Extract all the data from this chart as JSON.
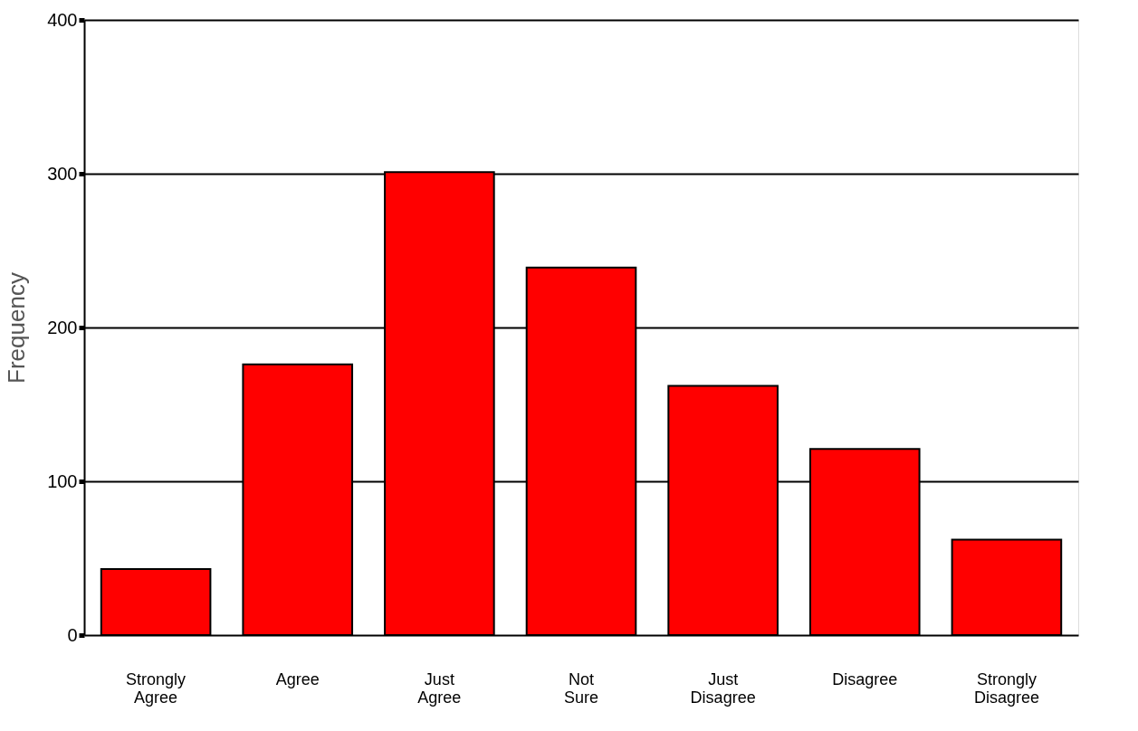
{
  "chart_data": {
    "type": "bar",
    "categories": [
      "Strongly Agree",
      "Agree",
      "Just Agree",
      "Not Sure",
      "Just Disagree",
      "Disagree",
      "Strongly Disagree"
    ],
    "values": [
      43,
      176,
      301,
      239,
      162,
      121,
      62
    ],
    "color": "#ff0000",
    "ylabel": "Frequency",
    "ylim": [
      0,
      400
    ],
    "yticks": [
      0,
      100,
      200,
      300,
      400
    ],
    "grid": "y"
  }
}
